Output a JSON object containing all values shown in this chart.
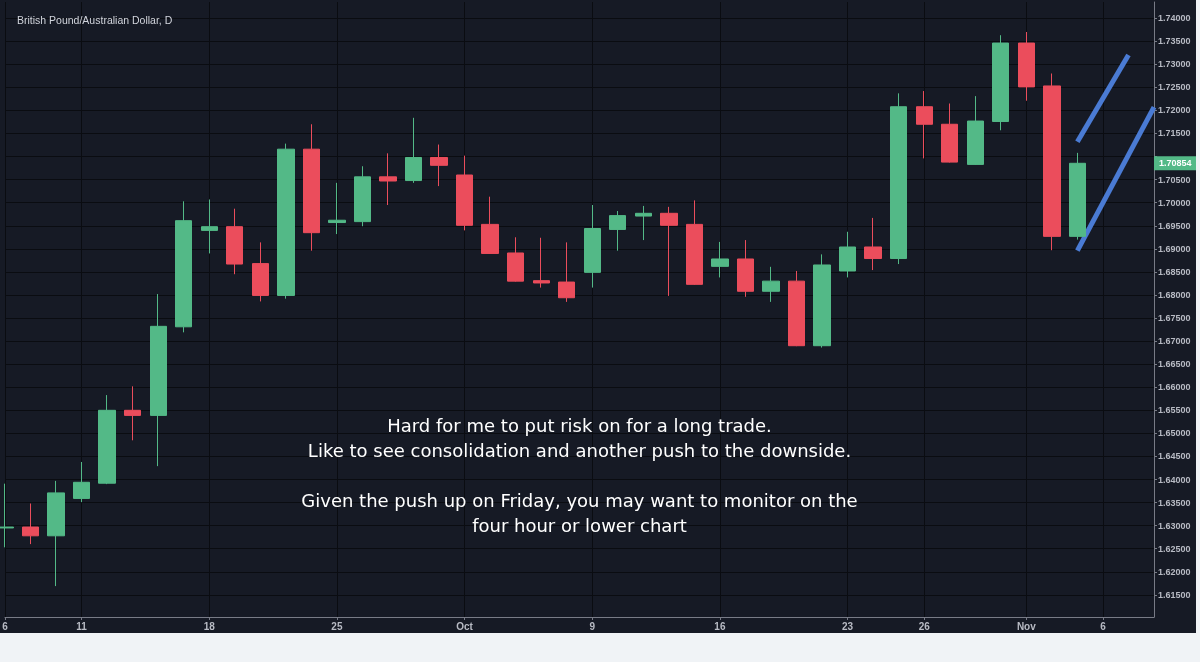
{
  "chart_data": {
    "type": "candlestick",
    "title": "British Pound/Australian Dollar, D",
    "categories": [
      "6",
      null,
      null,
      "11",
      null,
      null,
      null,
      null,
      "18",
      null,
      null,
      null,
      null,
      "25",
      null,
      null,
      null,
      null,
      "Oct",
      null,
      null,
      null,
      null,
      "9",
      null,
      null,
      null,
      null,
      "16",
      null,
      null,
      null,
      null,
      "23",
      null,
      null,
      "26",
      null,
      null,
      null,
      "Nov",
      null,
      null,
      "6",
      null,
      null
    ],
    "ohlc": [
      [
        1.6295,
        1.6391,
        1.6253,
        1.6297
      ],
      [
        1.6297,
        1.6348,
        1.626,
        1.6278
      ],
      [
        1.6278,
        1.6397,
        1.6169,
        1.6371
      ],
      [
        1.6359,
        1.6438,
        1.6351,
        1.6394
      ],
      [
        1.6392,
        1.6583,
        1.639,
        1.655
      ],
      [
        1.655,
        1.6602,
        1.6485,
        1.6539
      ],
      [
        1.6539,
        1.6802,
        1.6429,
        1.6732
      ],
      [
        1.6731,
        1.7003,
        1.6719,
        1.6961
      ],
      [
        1.694,
        1.7007,
        1.689,
        1.6948
      ],
      [
        1.6948,
        1.6987,
        1.6845,
        1.6867
      ],
      [
        1.6868,
        1.6914,
        1.6786,
        1.6799
      ],
      [
        1.6799,
        1.7128,
        1.6792,
        1.7116
      ],
      [
        1.7116,
        1.717,
        1.6896,
        1.6935
      ],
      [
        1.6957,
        1.7043,
        1.6932,
        1.6962
      ],
      [
        1.6959,
        1.7079,
        1.6949,
        1.7056
      ],
      [
        1.7056,
        1.7107,
        1.6995,
        1.7047
      ],
      [
        1.7048,
        1.7184,
        1.7043,
        1.7098
      ],
      [
        1.7098,
        1.7126,
        1.7036,
        1.7081
      ],
      [
        1.706,
        1.7102,
        1.694,
        1.6951
      ],
      [
        1.6953,
        1.7013,
        1.6889,
        1.689
      ],
      [
        1.6891,
        1.6925,
        1.6829,
        1.683
      ],
      [
        1.6831,
        1.6924,
        1.6816,
        1.6826
      ],
      [
        1.6828,
        1.6914,
        1.6785,
        1.6794
      ],
      [
        1.6849,
        1.6995,
        1.6816,
        1.6944
      ],
      [
        1.6942,
        1.6982,
        1.6896,
        1.6972
      ],
      [
        1.6971,
        1.6993,
        1.6919,
        1.6977
      ],
      [
        1.6977,
        1.6991,
        1.6798,
        1.6951
      ],
      [
        1.6953,
        1.7005,
        1.6822,
        1.6823
      ],
      [
        1.6862,
        1.6915,
        1.6838,
        1.6878
      ],
      [
        1.6878,
        1.6919,
        1.6796,
        1.6808
      ],
      [
        1.6808,
        1.6861,
        1.6785,
        1.683
      ],
      [
        1.683,
        1.6852,
        1.6689,
        1.669
      ],
      [
        1.669,
        1.6888,
        1.6686,
        1.6865
      ],
      [
        1.6852,
        1.6937,
        1.6838,
        1.6904
      ],
      [
        1.6904,
        1.6967,
        1.6854,
        1.6879
      ],
      [
        1.6879,
        1.7237,
        1.6867,
        1.7208
      ],
      [
        1.7208,
        1.7242,
        1.7096,
        1.717
      ],
      [
        1.717,
        1.7215,
        1.7087,
        1.7088
      ],
      [
        1.7083,
        1.7231,
        1.7082,
        1.7177
      ],
      [
        1.7176,
        1.7363,
        1.7157,
        1.7346
      ],
      [
        1.7346,
        1.737,
        1.7221,
        1.7251
      ],
      [
        1.7253,
        1.728,
        1.6897,
        1.6927
      ],
      [
        1.6927,
        1.7108,
        1.692,
        1.70854
      ],
      null,
      null,
      null
    ],
    "colors": [
      "#53b987",
      "#eb4d5c",
      "#53b987",
      "#53b987",
      "#53b987",
      "#eb4d5c",
      "#53b987",
      "#53b987",
      "#53b987",
      "#eb4d5c",
      "#eb4d5c",
      "#53b987",
      "#eb4d5c",
      "#53b987",
      "#53b987",
      "#eb4d5c",
      "#53b987",
      "#eb4d5c",
      "#eb4d5c",
      "#eb4d5c",
      "#eb4d5c",
      "#eb4d5c",
      "#eb4d5c",
      "#53b987",
      "#53b987",
      "#53b987",
      "#eb4d5c",
      "#eb4d5c",
      "#53b987",
      "#eb4d5c",
      "#53b987",
      "#eb4d5c",
      "#53b987",
      "#53b987",
      "#eb4d5c",
      "#53b987",
      "#eb4d5c",
      "#eb4d5c",
      "#53b987",
      "#53b987",
      "#eb4d5c",
      "#eb4d5c",
      "#53b987",
      null,
      null,
      null
    ],
    "series": [
      {
        "type": "line",
        "color": "#4a7bd4",
        "values": [
          null,
          null,
          null,
          null,
          null,
          null,
          null,
          null,
          null,
          null,
          null,
          null,
          null,
          null,
          null,
          null,
          null,
          null,
          null,
          null,
          null,
          null,
          null,
          null,
          null,
          null,
          null,
          null,
          null,
          null,
          null,
          null,
          null,
          null,
          null,
          null,
          null,
          null,
          null,
          null,
          null,
          null,
          1.7132,
          null,
          1.732,
          null
        ]
      },
      {
        "type": "line",
        "color": "#4a7bd4",
        "values": [
          null,
          null,
          null,
          null,
          null,
          null,
          null,
          null,
          null,
          null,
          null,
          null,
          null,
          null,
          null,
          null,
          null,
          null,
          null,
          null,
          null,
          null,
          null,
          null,
          null,
          null,
          null,
          null,
          null,
          null,
          null,
          null,
          null,
          null,
          null,
          null,
          null,
          null,
          null,
          null,
          null,
          null,
          1.6896,
          null,
          null,
          1.7207
        ]
      }
    ],
    "ylim": [
      1.6102,
      1.7435
    ],
    "yticks": [
      {
        "value": 1.615,
        "label": "1.61500"
      },
      {
        "value": 1.62,
        "label": "1.62000"
      },
      {
        "value": 1.625,
        "label": "1.62500"
      },
      {
        "value": 1.63,
        "label": "1.63000"
      },
      {
        "value": 1.635,
        "label": "1.63500"
      },
      {
        "value": 1.64,
        "label": "1.64000"
      },
      {
        "value": 1.645,
        "label": "1.64500"
      },
      {
        "value": 1.65,
        "label": "1.65000"
      },
      {
        "value": 1.655,
        "label": "1.65500"
      },
      {
        "value": 1.66,
        "label": "1.66000"
      },
      {
        "value": 1.665,
        "label": "1.66500"
      },
      {
        "value": 1.67,
        "label": "1.67000"
      },
      {
        "value": 1.675,
        "label": "1.67500"
      },
      {
        "value": 1.68,
        "label": "1.68000"
      },
      {
        "value": 1.685,
        "label": "1.68500"
      },
      {
        "value": 1.69,
        "label": "1.69000"
      },
      {
        "value": 1.695,
        "label": "1.69500"
      },
      {
        "value": 1.7,
        "label": "1.70000"
      },
      {
        "value": 1.705,
        "label": "1.70500"
      },
      {
        "value": 1.71,
        "label": null
      },
      {
        "value": 1.715,
        "label": "1.71500"
      },
      {
        "value": 1.72,
        "label": "1.72000"
      },
      {
        "value": 1.725,
        "label": "1.72500"
      },
      {
        "value": 1.73,
        "label": "1.73000"
      },
      {
        "value": 1.735,
        "label": "1.73500"
      },
      {
        "value": 1.74,
        "label": "1.74000"
      }
    ],
    "grid": true,
    "annotations": [
      "Hard for me to put risk on for a long trade.\nLike to see consolidation and another push to the downside.",
      "Given the push up on Friday, you may want to monitor on the\nfour hour or lower chart",
      {
        "text": "1.70854",
        "y": 1.70854
      }
    ]
  }
}
